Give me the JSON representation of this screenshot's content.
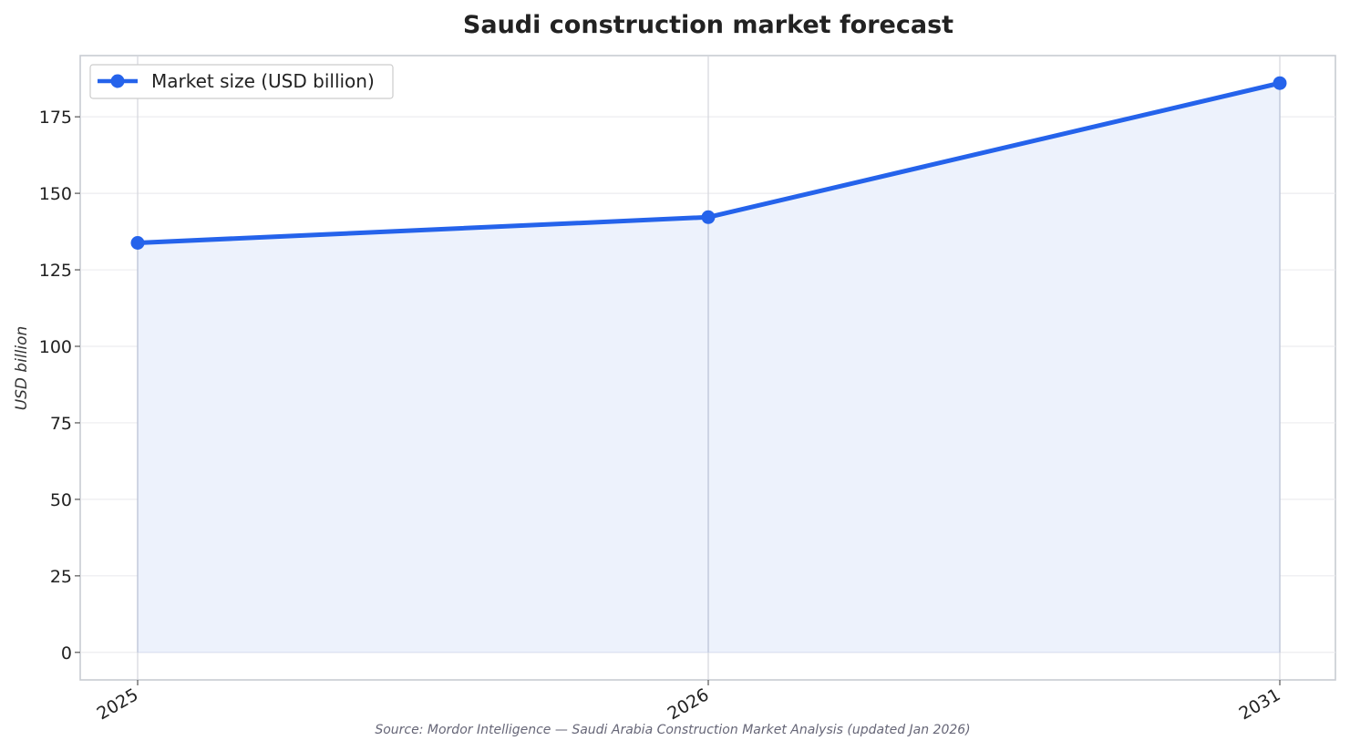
{
  "chart_data": {
    "type": "line",
    "title": "Saudi construction market forecast",
    "ylabel": "USD billion",
    "xlabel": "",
    "categories": [
      "2025",
      "2026",
      "2031"
    ],
    "series": [
      {
        "name": "Market size (USD billion)",
        "values": [
          133.8,
          142.2,
          186.0
        ],
        "color": "#2563eb",
        "area_fill": "#edf2fc"
      }
    ],
    "yticks": [
      0,
      25,
      50,
      75,
      100,
      125,
      150,
      175
    ],
    "ylim": [
      -9,
      195
    ],
    "grid": true,
    "legend_position": "top-left",
    "source": "Source: Mordor Intelligence — Saudi Arabia Construction Market Analysis (updated Jan 2026)"
  }
}
